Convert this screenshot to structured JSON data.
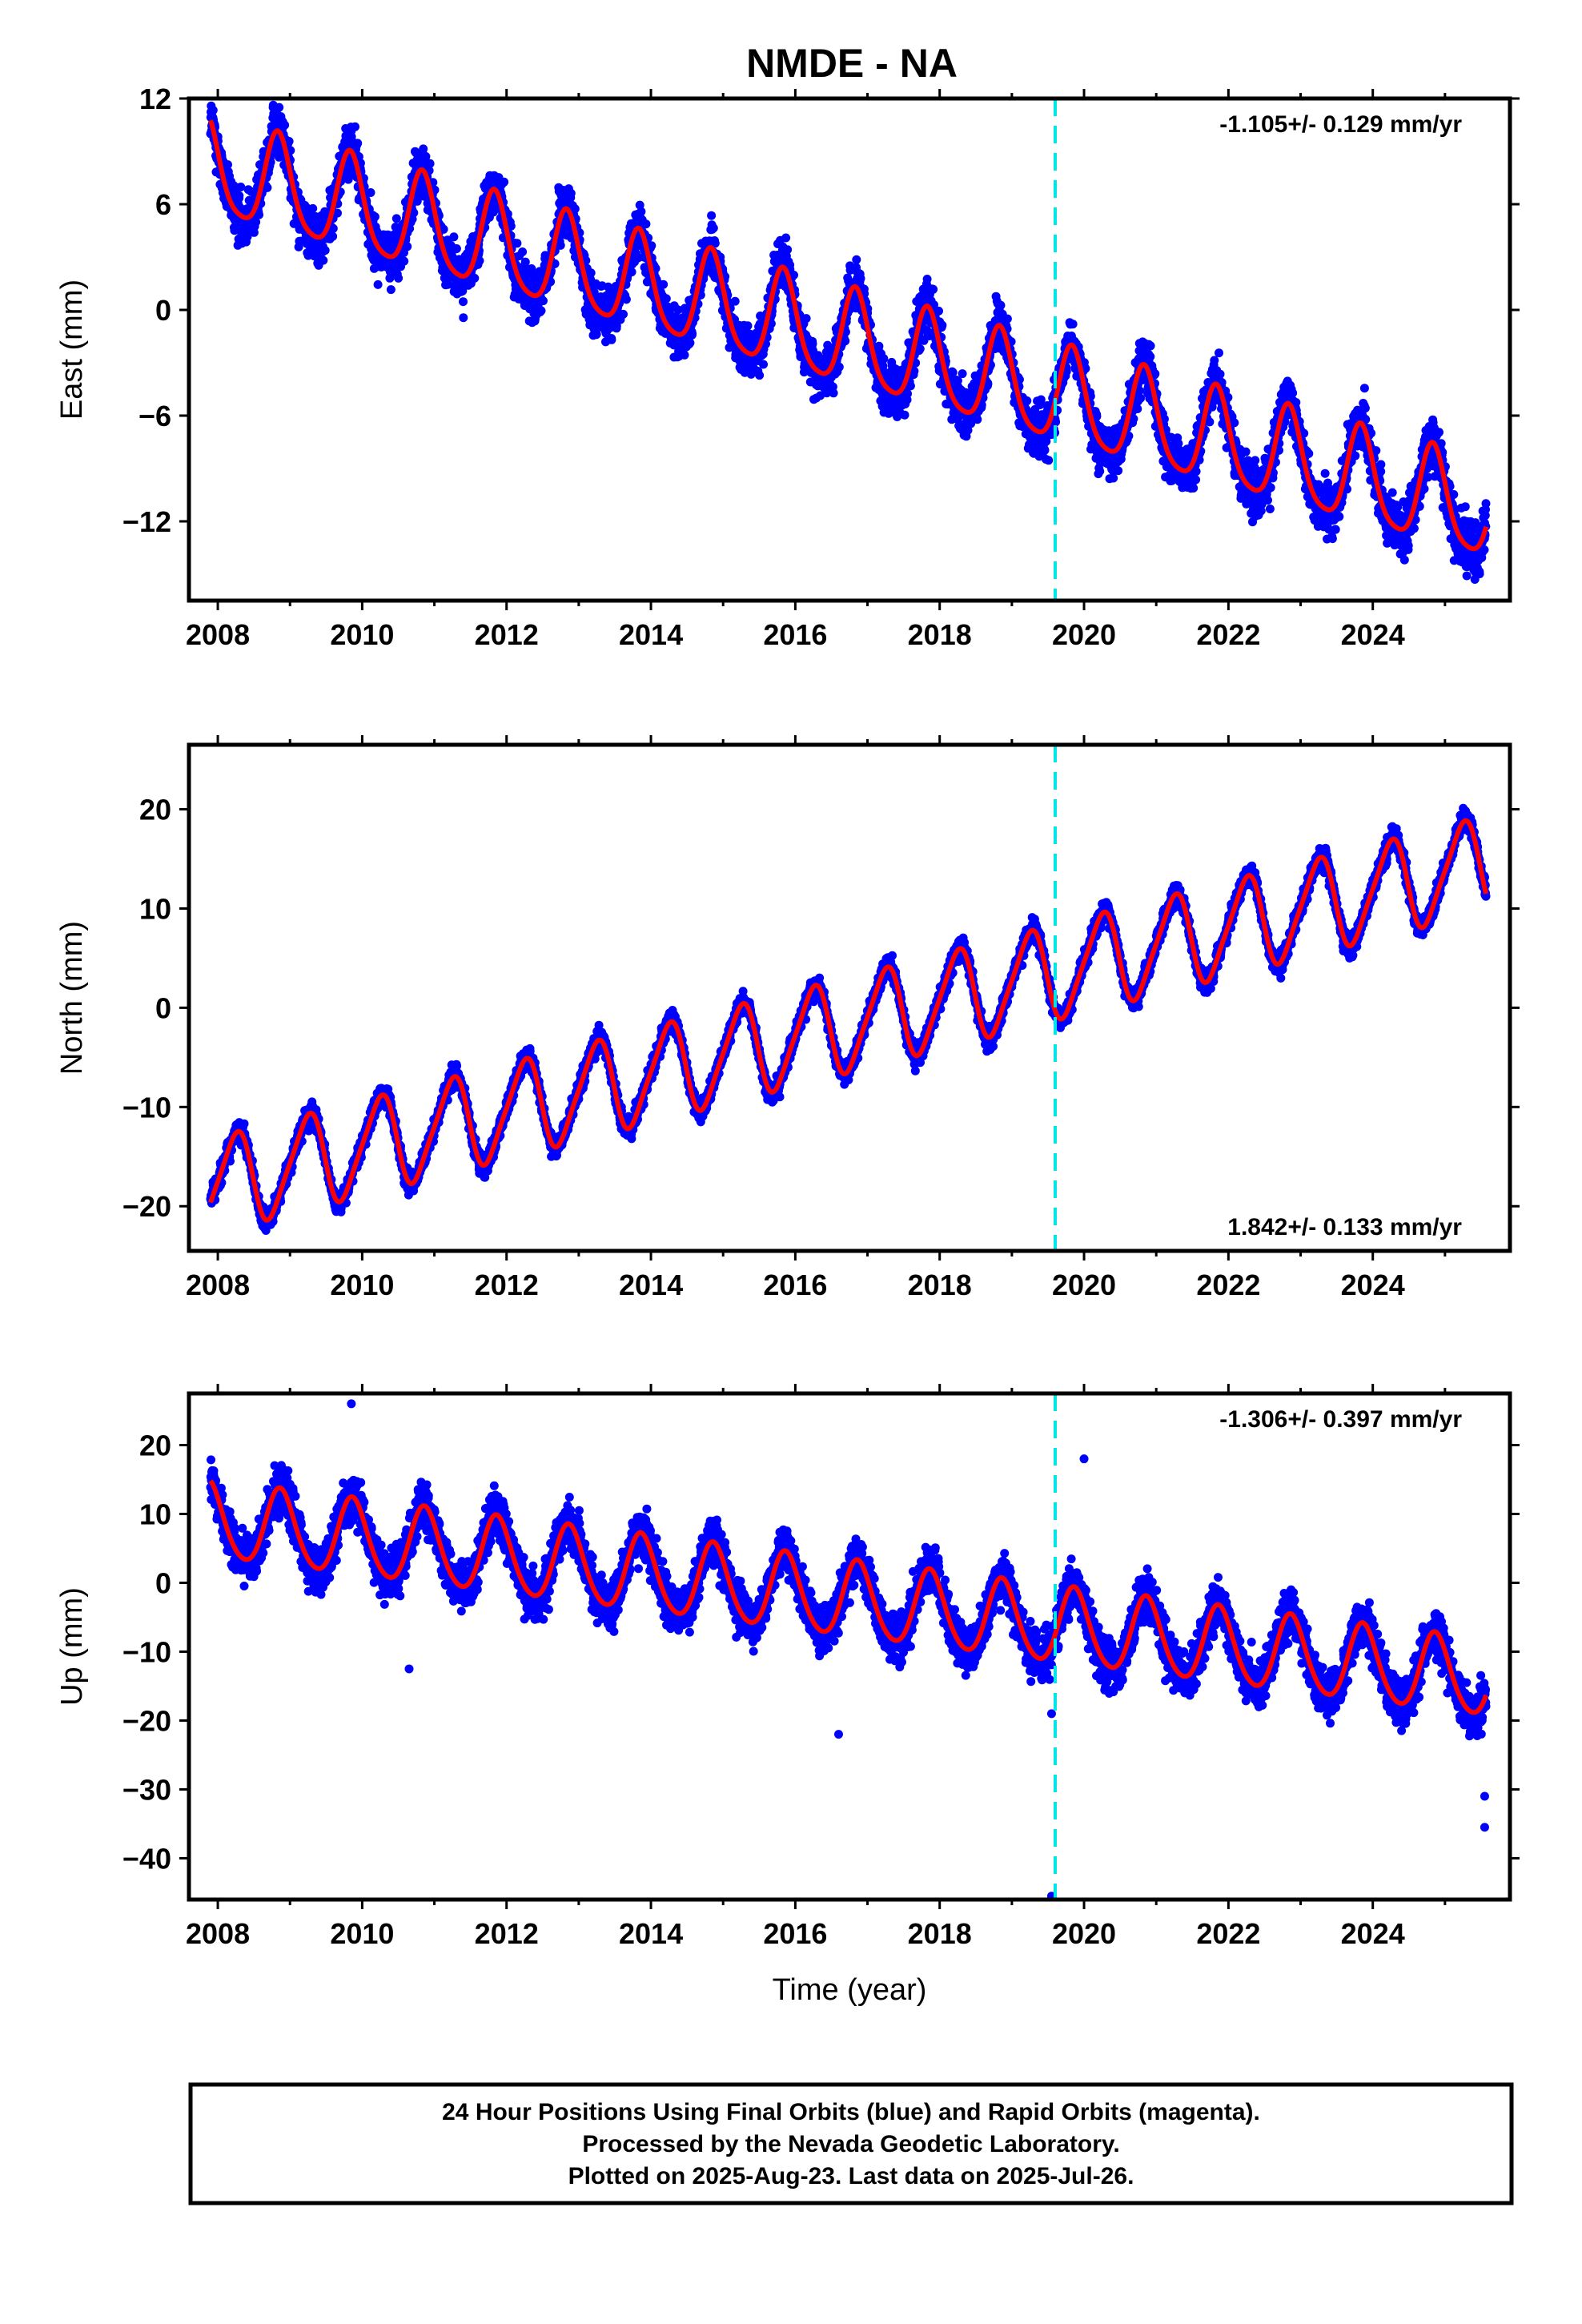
{
  "title": "NMDE - NA",
  "footer": {
    "lines": [
      "24 Hour Positions Using Final Orbits (blue) and Rapid Orbits (magenta).",
      "Processed by the Nevada Geodetic Laboratory.",
      "Plotted on 2025-Aug-23. Last data on 2025-Jul-26."
    ]
  },
  "colors": {
    "data_points": "#0000ff",
    "model_curve": "#ff0000",
    "event_line": "#00e5e5",
    "frame": "#000000"
  },
  "chart_data": [
    {
      "type": "scatter",
      "component": "East",
      "ylabel": "East (mm)",
      "xlabel": "",
      "xlim": [
        2007.6,
        2025.9
      ],
      "ylim": [
        -16.5,
        12
      ],
      "x_ticks": [
        2008,
        2010,
        2012,
        2014,
        2016,
        2018,
        2020,
        2022,
        2024
      ],
      "y_ticks": [
        12,
        6,
        0,
        -6,
        -12
      ],
      "rate_text": "-1.105+/- 0.129 mm/yr",
      "rate_position": "top-right",
      "event_line_x": 2019.6,
      "model": {
        "start": 2007.9,
        "end": 2025.57,
        "y0": 8.0,
        "rate": -1.105,
        "amp_annual": 2.7,
        "phase_annual": 0.4,
        "amp_semi": 0.5,
        "phase_semi": 1.0
      },
      "scatter": {
        "sigma": 1.4,
        "outliers": []
      }
    },
    {
      "type": "scatter",
      "component": "North",
      "ylabel": "North (mm)",
      "xlabel": "",
      "xlim": [
        2007.6,
        2025.9
      ],
      "ylim": [
        -24.5,
        26.5
      ],
      "x_ticks": [
        2008,
        2010,
        2012,
        2014,
        2016,
        2018,
        2020,
        2022,
        2024
      ],
      "y_ticks": [
        20,
        10,
        0,
        -10,
        -20
      ],
      "rate_text": "1.842+/- 0.133 mm/yr",
      "rate_position": "bottom-right",
      "event_line_x": 2019.6,
      "model": {
        "start": 2007.9,
        "end": 2025.57,
        "y0": -18.0,
        "rate": 1.842,
        "amp_annual": 4.6,
        "phase_annual": -2.1,
        "amp_semi": 0.8,
        "phase_semi": 0.5
      },
      "scatter": {
        "sigma": 1.0,
        "outliers": []
      }
    },
    {
      "type": "scatter",
      "component": "Up",
      "ylabel": "Up (mm)",
      "xlabel": "Time (year)",
      "xlim": [
        2007.6,
        2025.9
      ],
      "ylim": [
        -46,
        27.5
      ],
      "x_ticks": [
        2008,
        2010,
        2012,
        2014,
        2016,
        2018,
        2020,
        2022,
        2024
      ],
      "y_ticks": [
        20,
        10,
        0,
        -10,
        -20,
        -30,
        -40
      ],
      "rate_text": "-1.306+/- 0.397 mm/yr",
      "rate_position": "top-right",
      "event_line_x": 2019.6,
      "model": {
        "start": 2007.9,
        "end": 2025.57,
        "y0": 9.0,
        "rate": -1.306,
        "amp_annual": 5.5,
        "phase_annual": 0.2,
        "amp_semi": 0.6,
        "phase_semi": 0.8
      },
      "scatter": {
        "sigma": 3.3,
        "outliers": [
          {
            "x": 2009.85,
            "y": 26.0
          },
          {
            "x": 2019.55,
            "y": -45.5
          },
          {
            "x": 2016.6,
            "y": -22.0
          },
          {
            "x": 2025.55,
            "y": -31.0
          },
          {
            "x": 2025.55,
            "y": -35.5
          },
          {
            "x": 2020.0,
            "y": 18.0
          },
          {
            "x": 2010.65,
            "y": -12.5
          },
          {
            "x": 2019.55,
            "y": -19.0
          }
        ]
      }
    }
  ]
}
